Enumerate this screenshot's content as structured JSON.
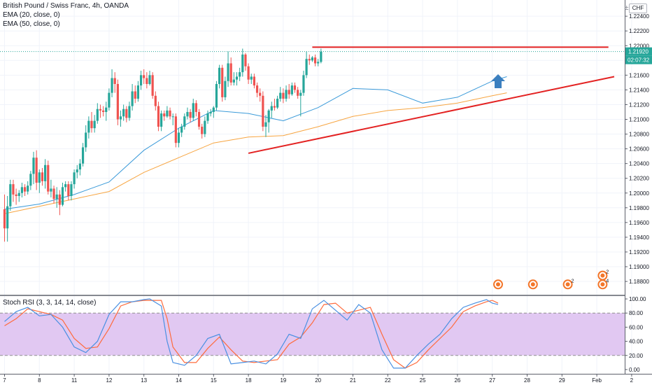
{
  "header": {
    "title": "British Pound / Swiss Franc, 4h, OANDA",
    "ema20_label": "EMA (20, close, 0)",
    "ema50_label": "EMA (50, close, 0)",
    "currency": "CHF",
    "currency_button": "±"
  },
  "colors": {
    "up": "#26a69a",
    "down": "#ef5350",
    "ema20": "#3a9ad9",
    "ema50": "#f7a541",
    "trendline": "#e32222",
    "stoch_k": "#4a90e2",
    "stoch_d": "#ff6b3d",
    "stoch_band": "#e1c8f2",
    "arrow": "#3b7fbf",
    "event": "#f3762a"
  },
  "chart_data": {
    "type": "candlestick",
    "price_axis": {
      "ticks": [
        "1.22400",
        "1.22200",
        "1.22000",
        "1.21800",
        "1.21600",
        "1.21400",
        "1.21200",
        "1.21000",
        "1.20800",
        "1.20600",
        "1.20400",
        "1.20200",
        "1.20000",
        "1.19800",
        "1.19600",
        "1.19400",
        "1.19200",
        "1.19000",
        "1.18800"
      ],
      "ylim": [
        1.1862,
        1.2262
      ],
      "last_price_label": "1.21920",
      "last_price": 1.2192,
      "countdown_label": "02:07:32"
    },
    "time_axis": {
      "labels": [
        "7",
        "8",
        "11",
        "12",
        "13",
        "14",
        "15",
        "18",
        "19",
        "20",
        "21",
        "22",
        "25",
        "26",
        "27",
        "28",
        "29",
        "Feb",
        "2"
      ],
      "positions": [
        0,
        12,
        24,
        36,
        48,
        60,
        72,
        84,
        96,
        108,
        120,
        132,
        144,
        156,
        168,
        180,
        192,
        204,
        216
      ]
    },
    "candles": [
      [
        1.1978,
        1.1998,
        1.1934,
        1.1952
      ],
      [
        1.1952,
        1.1996,
        1.1934,
        1.1982
      ],
      [
        1.1982,
        1.2018,
        1.1976,
        1.2012
      ],
      [
        1.2012,
        1.2018,
        1.1988,
        1.1998
      ],
      [
        1.1998,
        1.2006,
        1.1984,
        1.1996
      ],
      [
        1.1996,
        1.2004,
        1.1988,
        1.2
      ],
      [
        1.2,
        1.2014,
        1.1994,
        1.2008
      ],
      [
        1.2008,
        1.2012,
        1.1996,
        1.2002
      ],
      [
        1.2002,
        1.2016,
        1.1998,
        1.201
      ],
      [
        1.201,
        1.203,
        1.2004,
        1.2026
      ],
      [
        1.2026,
        1.2056,
        1.2012,
        1.2048
      ],
      [
        1.2048,
        1.2058,
        1.2004,
        1.2014
      ],
      [
        1.2014,
        1.2032,
        1.2,
        1.2028
      ],
      [
        1.2028,
        1.2034,
        1.201,
        1.2016
      ],
      [
        1.2016,
        1.2046,
        1.2006,
        1.2038
      ],
      [
        1.2038,
        1.2044,
        1.1998,
        1.2002
      ],
      [
        1.2002,
        1.2018,
        1.1994,
        1.2006
      ],
      [
        1.2006,
        1.201,
        1.1986,
        1.1992
      ],
      [
        1.1992,
        1.2008,
        1.198,
        1.1998
      ],
      [
        1.1998,
        1.2004,
        1.197,
        1.1984
      ],
      [
        1.1984,
        1.2014,
        1.1982,
        1.2008
      ],
      [
        1.2008,
        1.2016,
        1.2002,
        1.2012
      ],
      [
        1.2012,
        1.2016,
        1.199,
        1.1996
      ],
      [
        1.1996,
        1.2016,
        1.199,
        1.2012
      ],
      [
        1.2012,
        1.2032,
        1.2006,
        1.2028
      ],
      [
        1.2028,
        1.2038,
        1.202,
        1.2032
      ],
      [
        1.2032,
        1.2046,
        1.2024,
        1.204
      ],
      [
        1.204,
        1.2068,
        1.2036,
        1.2062
      ],
      [
        1.2062,
        1.2092,
        1.2056,
        1.2082
      ],
      [
        1.2082,
        1.2104,
        1.2074,
        1.2098
      ],
      [
        1.2098,
        1.211,
        1.2082,
        1.2088
      ],
      [
        1.2088,
        1.2106,
        1.2082,
        1.2098
      ],
      [
        1.2098,
        1.2122,
        1.2094,
        1.2114
      ],
      [
        1.2114,
        1.212,
        1.2102,
        1.2112
      ],
      [
        1.2112,
        1.2118,
        1.2104,
        1.211
      ],
      [
        1.211,
        1.2124,
        1.2098,
        1.2116
      ],
      [
        1.2116,
        1.2142,
        1.2112,
        1.2136
      ],
      [
        1.2136,
        1.2168,
        1.213,
        1.2156
      ],
      [
        1.2156,
        1.2164,
        1.2136,
        1.2148
      ],
      [
        1.2148,
        1.2154,
        1.2092,
        1.21
      ],
      [
        1.21,
        1.2112,
        1.209,
        1.2104
      ],
      [
        1.2104,
        1.212,
        1.2098,
        1.2114
      ],
      [
        1.2114,
        1.2118,
        1.2096,
        1.2102
      ],
      [
        1.2102,
        1.2124,
        1.2098,
        1.2118
      ],
      [
        1.2118,
        1.2148,
        1.2112,
        1.2138
      ],
      [
        1.2138,
        1.2146,
        1.2122,
        1.2128
      ],
      [
        1.2128,
        1.2152,
        1.2124,
        1.2146
      ],
      [
        1.2146,
        1.2166,
        1.214,
        1.216
      ],
      [
        1.216,
        1.2168,
        1.2148,
        1.2156
      ],
      [
        1.2156,
        1.2164,
        1.2142,
        1.2148
      ],
      [
        1.2148,
        1.2166,
        1.2146,
        1.216
      ],
      [
        1.216,
        1.2164,
        1.2128,
        1.2132
      ],
      [
        1.2132,
        1.2138,
        1.2112,
        1.2118
      ],
      [
        1.2118,
        1.2124,
        1.2084,
        1.209
      ],
      [
        1.209,
        1.2112,
        1.2084,
        1.2108
      ],
      [
        1.2108,
        1.2112,
        1.2098,
        1.2104
      ],
      [
        1.2104,
        1.2118,
        1.2102,
        1.2112
      ],
      [
        1.2112,
        1.2116,
        1.21,
        1.2104
      ],
      [
        1.2104,
        1.2108,
        1.2092,
        1.2104
      ],
      [
        1.2104,
        1.2108,
        1.2062,
        1.2068
      ],
      [
        1.2068,
        1.2088,
        1.2062,
        1.2082
      ],
      [
        1.2082,
        1.2094,
        1.2076,
        1.209
      ],
      [
        1.209,
        1.2108,
        1.2086,
        1.2104
      ],
      [
        1.2104,
        1.2116,
        1.21,
        1.211
      ],
      [
        1.211,
        1.2114,
        1.2096,
        1.2102
      ],
      [
        1.2102,
        1.2128,
        1.2098,
        1.2122
      ],
      [
        1.2122,
        1.2126,
        1.2104,
        1.211
      ],
      [
        1.211,
        1.2114,
        1.2086,
        1.209
      ],
      [
        1.209,
        1.2094,
        1.2074,
        1.208
      ],
      [
        1.208,
        1.2104,
        1.2076,
        1.2098
      ],
      [
        1.2098,
        1.2112,
        1.2094,
        1.2108
      ],
      [
        1.2108,
        1.2114,
        1.2104,
        1.211
      ],
      [
        1.211,
        1.2118,
        1.2102,
        1.2116
      ],
      [
        1.2116,
        1.2152,
        1.2112,
        1.2148
      ],
      [
        1.2148,
        1.2174,
        1.2142,
        1.217
      ],
      [
        1.217,
        1.2174,
        1.2124,
        1.213
      ],
      [
        1.213,
        1.2158,
        1.2126,
        1.2152
      ],
      [
        1.2152,
        1.2192,
        1.2144,
        1.2176
      ],
      [
        1.2176,
        1.2184,
        1.2146,
        1.215
      ],
      [
        1.215,
        1.2164,
        1.2146,
        1.2154
      ],
      [
        1.2154,
        1.2164,
        1.2146,
        1.2158
      ],
      [
        1.2158,
        1.217,
        1.2152,
        1.2164
      ],
      [
        1.2164,
        1.2196,
        1.2158,
        1.2188
      ],
      [
        1.2188,
        1.219,
        1.2166,
        1.2172
      ],
      [
        1.2172,
        1.2176,
        1.2148,
        1.2154
      ],
      [
        1.2154,
        1.2162,
        1.2148,
        1.2158
      ],
      [
        1.2158,
        1.2162,
        1.2142,
        1.2146
      ],
      [
        1.2146,
        1.215,
        1.213,
        1.2136
      ],
      [
        1.2136,
        1.2142,
        1.2124,
        1.2132
      ],
      [
        1.2132,
        1.2138,
        1.2084,
        1.209
      ],
      [
        1.209,
        1.2106,
        1.2076,
        1.2096
      ],
      [
        1.2096,
        1.2114,
        1.2082,
        1.2112
      ],
      [
        1.2112,
        1.2124,
        1.2102,
        1.2118
      ],
      [
        1.2118,
        1.2128,
        1.2112,
        1.2116
      ],
      [
        1.2116,
        1.2132,
        1.2114,
        1.2128
      ],
      [
        1.2128,
        1.2144,
        1.2124,
        1.2136
      ],
      [
        1.2136,
        1.2142,
        1.2122,
        1.2128
      ],
      [
        1.2128,
        1.2146,
        1.2124,
        1.214
      ],
      [
        1.214,
        1.2148,
        1.2128,
        1.2134
      ],
      [
        1.2134,
        1.215,
        1.2132,
        1.2146
      ],
      [
        1.2146,
        1.215,
        1.2136,
        1.214
      ],
      [
        1.214,
        1.2144,
        1.2128,
        1.2132
      ],
      [
        1.2132,
        1.214,
        1.2104,
        1.2136
      ],
      [
        1.2136,
        1.2166,
        1.2132,
        1.216
      ],
      [
        1.216,
        1.2192,
        1.2156,
        1.2182
      ],
      [
        1.2182,
        1.2188,
        1.2174,
        1.218
      ],
      [
        1.218,
        1.2186,
        1.2178,
        1.2184
      ],
      [
        1.2184,
        1.2188,
        1.2172,
        1.2176
      ],
      [
        1.2176,
        1.2182,
        1.2172,
        1.2178
      ],
      [
        1.2178,
        1.2196,
        1.2176,
        1.2192
      ]
    ],
    "ema20": [
      [
        0,
        1.1978
      ],
      [
        12,
        1.1985
      ],
      [
        24,
        1.1998
      ],
      [
        36,
        1.2015
      ],
      [
        48,
        1.2058
      ],
      [
        60,
        1.2088
      ],
      [
        72,
        1.2112
      ],
      [
        84,
        1.2108
      ],
      [
        96,
        1.2098
      ],
      [
        108,
        1.2116
      ],
      [
        120,
        1.2142
      ],
      [
        132,
        1.214
      ],
      [
        144,
        1.2122
      ],
      [
        156,
        1.213
      ],
      [
        168,
        1.2152
      ],
      [
        173,
        1.2158
      ]
    ],
    "ema50": [
      [
        0,
        1.1972
      ],
      [
        12,
        1.1982
      ],
      [
        24,
        1.1992
      ],
      [
        36,
        1.2002
      ],
      [
        48,
        1.2028
      ],
      [
        60,
        1.2048
      ],
      [
        72,
        1.2068
      ],
      [
        84,
        1.2076
      ],
      [
        96,
        1.2078
      ],
      [
        108,
        1.209
      ],
      [
        120,
        1.2104
      ],
      [
        132,
        1.2112
      ],
      [
        144,
        1.2116
      ],
      [
        156,
        1.2122
      ],
      [
        168,
        1.2132
      ],
      [
        173,
        1.2136
      ]
    ],
    "resistance": {
      "price": 1.2198,
      "from": 106,
      "to": 208
    },
    "support": [
      [
        84,
        1.2054
      ],
      [
        210,
        1.2158
      ]
    ],
    "arrow_at": 170,
    "events": [
      {
        "at": 170,
        "level": 1.1876,
        "count": ""
      },
      {
        "at": 182,
        "level": 1.1876,
        "count": ""
      },
      {
        "at": 194,
        "level": 1.1876,
        "count": "2"
      },
      {
        "at": 206,
        "level": 1.1876,
        "count": "4"
      },
      {
        "at": 206,
        "level": 1.1888,
        "count": "2"
      }
    ],
    "stoch_rsi": {
      "label": "Stoch RSI (3, 3, 14, 14, close)",
      "ticks": [
        "100.00",
        "80.00",
        "60.00",
        "40.00",
        "20.00",
        "0.00"
      ],
      "ylim": [
        -6,
        104
      ],
      "band": [
        20,
        80
      ],
      "k": [
        [
          0,
          68
        ],
        [
          4,
          82
        ],
        [
          8,
          88
        ],
        [
          12,
          76
        ],
        [
          16,
          78
        ],
        [
          20,
          60
        ],
        [
          24,
          32
        ],
        [
          28,
          24
        ],
        [
          32,
          40
        ],
        [
          36,
          78
        ],
        [
          40,
          96
        ],
        [
          44,
          96
        ],
        [
          48,
          99
        ],
        [
          50,
          100
        ],
        [
          54,
          90
        ],
        [
          56,
          40
        ],
        [
          58,
          10
        ],
        [
          62,
          6
        ],
        [
          66,
          20
        ],
        [
          70,
          44
        ],
        [
          74,
          50
        ],
        [
          78,
          8
        ],
        [
          82,
          10
        ],
        [
          86,
          12
        ],
        [
          90,
          8
        ],
        [
          94,
          22
        ],
        [
          98,
          50
        ],
        [
          102,
          44
        ],
        [
          106,
          86
        ],
        [
          110,
          98
        ],
        [
          114,
          84
        ],
        [
          118,
          70
        ],
        [
          122,
          92
        ],
        [
          126,
          80
        ],
        [
          130,
          28
        ],
        [
          134,
          2
        ],
        [
          138,
          2
        ],
        [
          142,
          20
        ],
        [
          146,
          36
        ],
        [
          150,
          50
        ],
        [
          154,
          72
        ],
        [
          158,
          88
        ],
        [
          162,
          94
        ],
        [
          166,
          99
        ],
        [
          168,
          94
        ],
        [
          170,
          92
        ]
      ],
      "d": [
        [
          0,
          62
        ],
        [
          4,
          72
        ],
        [
          8,
          86
        ],
        [
          12,
          82
        ],
        [
          16,
          78
        ],
        [
          20,
          70
        ],
        [
          24,
          44
        ],
        [
          28,
          30
        ],
        [
          32,
          32
        ],
        [
          36,
          58
        ],
        [
          40,
          90
        ],
        [
          44,
          96
        ],
        [
          48,
          98
        ],
        [
          50,
          98
        ],
        [
          54,
          98
        ],
        [
          56,
          72
        ],
        [
          58,
          32
        ],
        [
          62,
          10
        ],
        [
          66,
          10
        ],
        [
          70,
          30
        ],
        [
          74,
          46
        ],
        [
          78,
          28
        ],
        [
          82,
          12
        ],
        [
          86,
          10
        ],
        [
          90,
          12
        ],
        [
          94,
          14
        ],
        [
          98,
          36
        ],
        [
          102,
          46
        ],
        [
          106,
          66
        ],
        [
          110,
          92
        ],
        [
          114,
          94
        ],
        [
          118,
          80
        ],
        [
          122,
          84
        ],
        [
          126,
          88
        ],
        [
          130,
          50
        ],
        [
          134,
          14
        ],
        [
          138,
          2
        ],
        [
          142,
          10
        ],
        [
          146,
          28
        ],
        [
          150,
          44
        ],
        [
          154,
          60
        ],
        [
          158,
          82
        ],
        [
          162,
          90
        ],
        [
          166,
          96
        ],
        [
          168,
          98
        ],
        [
          170,
          94
        ]
      ]
    }
  }
}
